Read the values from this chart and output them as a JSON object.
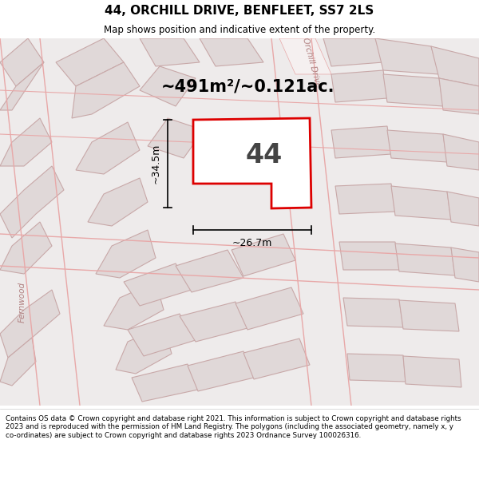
{
  "title": "44, ORCHILL DRIVE, BENFLEET, SS7 2LS",
  "subtitle": "Map shows position and indicative extent of the property.",
  "area_label": "~491m²/~0.121ac.",
  "plot_number": "44",
  "dim_width": "~26.7m",
  "dim_height": "~34.5m",
  "footer": "Contains OS data © Crown copyright and database right 2021. This information is subject to Crown copyright and database rights 2023 and is reproduced with the permission of HM Land Registry. The polygons (including the associated geometry, namely x, y co-ordinates) are subject to Crown copyright and database rights 2023 Ordnance Survey 100026316.",
  "bg_color": "#f0eded",
  "plot_edge_color": "#dd0000",
  "plot_fill": "#f8f8f8",
  "building_fill": "#e0d8d8",
  "building_edge": "#c8a8a8",
  "road_line_color": "#e8a8a8",
  "street_label": "Orchill Drive",
  "street_label2": "Fernwood",
  "street_label_color": "#b08080"
}
